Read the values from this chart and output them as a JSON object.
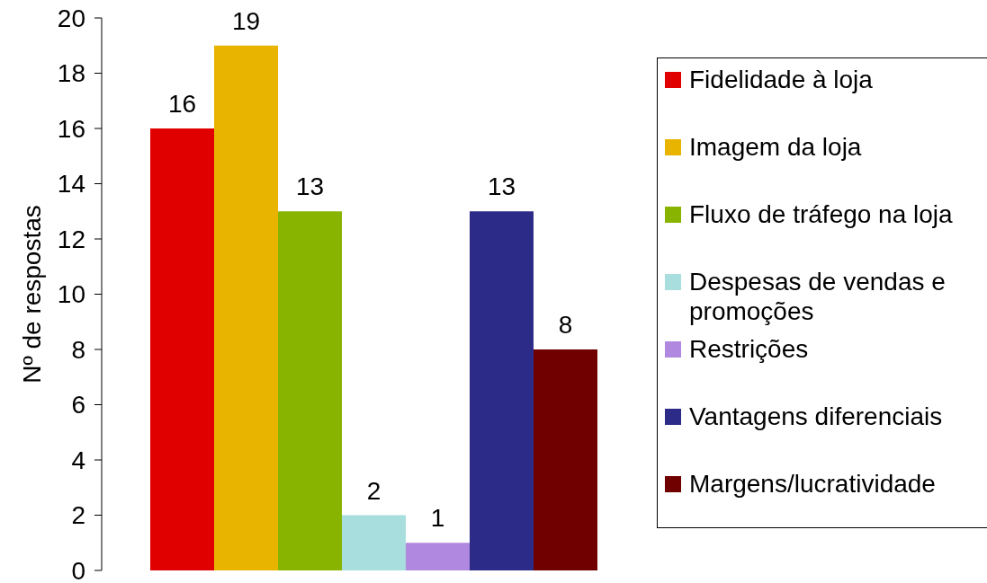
{
  "chart_data": {
    "type": "bar",
    "ylabel": "Nº de respostas",
    "categories": [
      null
    ],
    "series": [
      {
        "name": "Fidelidade à loja",
        "color": "#e00000",
        "values": [
          16
        ]
      },
      {
        "name": "Imagem da loja",
        "color": "#e8b400",
        "values": [
          19
        ]
      },
      {
        "name": "Fluxo de tráfego na loja",
        "color": "#88b400",
        "values": [
          13
        ]
      },
      {
        "name": "Despesas de vendas e promoções",
        "color": "#a8dede",
        "values": [
          2
        ]
      },
      {
        "name": "Restrições",
        "color": "#b088e0",
        "values": [
          1
        ]
      },
      {
        "name": "Vantagens diferenciais",
        "color": "#2c2c88",
        "values": [
          13
        ]
      },
      {
        "name": "Margens/lucratividade",
        "color": "#700000",
        "values": [
          8
        ]
      }
    ],
    "ylim": [
      0,
      20
    ],
    "yticks": [
      0,
      2,
      4,
      6,
      8,
      10,
      12,
      14,
      16,
      18,
      20
    ],
    "legend": "right",
    "data_labels": true
  }
}
